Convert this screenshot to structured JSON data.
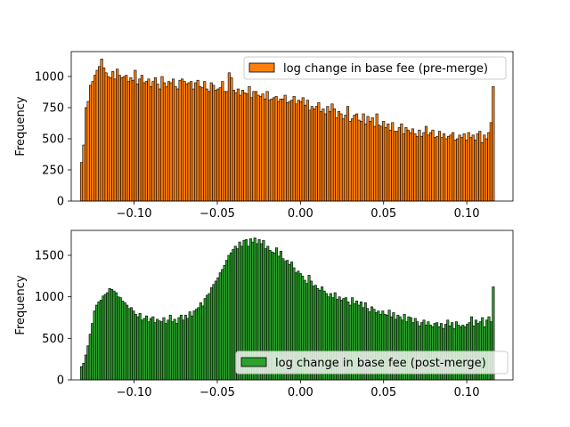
{
  "chart_data": [
    {
      "type": "bar",
      "subtype": "histogram",
      "ylabel": "Frequency",
      "xlabel": "",
      "xlim": [
        -0.1378,
        0.1278
      ],
      "ylim": [
        0,
        1200
      ],
      "xticks": [
        -0.1,
        -0.05,
        0.0,
        0.05,
        0.1
      ],
      "xtick_labels": [
        "−0.10",
        "−0.05",
        "0.00",
        "0.05",
        "0.10"
      ],
      "yticks": [
        0,
        250,
        500,
        750,
        1000
      ],
      "ytick_labels": [
        "0",
        "250",
        "500",
        "750",
        "1000"
      ],
      "legend_position": "upper right",
      "series": [
        {
          "name": "log change in base fee (pre-merge)",
          "color": "#ff7f0e",
          "bin_start": -0.1323,
          "bin_end": 0.1166,
          "values": [
            310,
            450,
            750,
            800,
            930,
            960,
            1010,
            1050,
            1080,
            1140,
            1070,
            1030,
            1000,
            990,
            1040,
            980,
            1060,
            1010,
            990,
            1000,
            1010,
            960,
            990,
            970,
            1050,
            940,
            980,
            1010,
            950,
            960,
            980,
            920,
            960,
            990,
            940,
            900,
            1000,
            950,
            920,
            960,
            950,
            980,
            920,
            900,
            970,
            980,
            960,
            940,
            950,
            960,
            900,
            950,
            970,
            920,
            910,
            960,
            900,
            880,
            950,
            930,
            890,
            900,
            910,
            960,
            880,
            880,
            1030,
            990,
            890,
            870,
            900,
            850,
            890,
            870,
            860,
            920,
            830,
            880,
            880,
            850,
            840,
            860,
            820,
            880,
            810,
            820,
            830,
            840,
            800,
            820,
            820,
            850,
            790,
            800,
            810,
            840,
            780,
            810,
            800,
            830,
            770,
            810,
            730,
            760,
            740,
            760,
            790,
            720,
            740,
            700,
            760,
            720,
            780,
            740,
            670,
            720,
            700,
            660,
            690,
            760,
            640,
            660,
            690,
            700,
            650,
            640,
            700,
            620,
            680,
            640,
            670,
            600,
            700,
            610,
            600,
            640,
            590,
            620,
            570,
            630,
            560,
            560,
            590,
            620,
            540,
            590,
            570,
            550,
            580,
            540,
            520,
            570,
            520,
            550,
            600,
            530,
            550,
            570,
            510,
            520,
            560,
            510,
            540,
            500,
            520,
            530,
            550,
            490,
            500,
            530,
            510,
            540,
            490,
            550,
            510,
            530,
            490,
            540,
            560,
            470,
            530,
            500,
            550,
            630,
            920
          ]
        }
      ]
    },
    {
      "type": "bar",
      "subtype": "histogram",
      "ylabel": "Frequency",
      "xlabel": "",
      "xlim": [
        -0.1378,
        0.1278
      ],
      "ylim": [
        0,
        1800
      ],
      "xticks": [
        -0.1,
        -0.05,
        0.0,
        0.05,
        0.1
      ],
      "xtick_labels": [
        "−0.10",
        "−0.05",
        "0.00",
        "0.05",
        "0.10"
      ],
      "yticks": [
        0,
        500,
        1000,
        1500
      ],
      "ytick_labels": [
        "0",
        "500",
        "1000",
        "1500"
      ],
      "legend_position": "lower right",
      "series": [
        {
          "name": "log change in base fee (post-merge)",
          "color": "#2ca02c",
          "bin_start": -0.1323,
          "bin_end": 0.1166,
          "values": [
            160,
            200,
            300,
            410,
            550,
            680,
            830,
            900,
            940,
            960,
            1010,
            1030,
            1050,
            1100,
            1090,
            1070,
            1050,
            1000,
            990,
            950,
            930,
            900,
            860,
            870,
            830,
            790,
            760,
            800,
            720,
            740,
            770,
            700,
            740,
            760,
            690,
            730,
            710,
            700,
            750,
            680,
            720,
            780,
            700,
            730,
            680,
            750,
            780,
            720,
            780,
            740,
            820,
            770,
            830,
            850,
            870,
            930,
            890,
            980,
            1020,
            1040,
            1110,
            1150,
            1190,
            1230,
            1290,
            1330,
            1380,
            1440,
            1500,
            1530,
            1570,
            1610,
            1580,
            1660,
            1610,
            1680,
            1690,
            1610,
            1700,
            1660,
            1710,
            1640,
            1690,
            1640,
            1680,
            1580,
            1610,
            1560,
            1540,
            1530,
            1590,
            1490,
            1550,
            1460,
            1430,
            1440,
            1390,
            1420,
            1350,
            1290,
            1310,
            1280,
            1250,
            1200,
            1160,
            1260,
            1190,
            1130,
            1140,
            1100,
            1080,
            1120,
            1070,
            1040,
            1000,
            1040,
            990,
            1050,
            970,
            1000,
            960,
            980,
            990,
            940,
            900,
            990,
            920,
            950,
            900,
            940,
            870,
            930,
            860,
            820,
            880,
            850,
            810,
            830,
            790,
            830,
            790,
            780,
            840,
            760,
            810,
            730,
            780,
            760,
            720,
            790,
            700,
            760,
            750,
            690,
            740,
            700,
            650,
            690,
            720,
            660,
            700,
            660,
            640,
            680,
            690,
            640,
            680,
            620,
            670,
            720,
            650,
            690,
            620,
            700,
            660,
            640,
            660,
            640,
            670,
            690,
            760,
            650,
            720,
            680,
            700,
            750,
            640,
            720,
            760,
            700,
            1120
          ]
        }
      ]
    }
  ]
}
